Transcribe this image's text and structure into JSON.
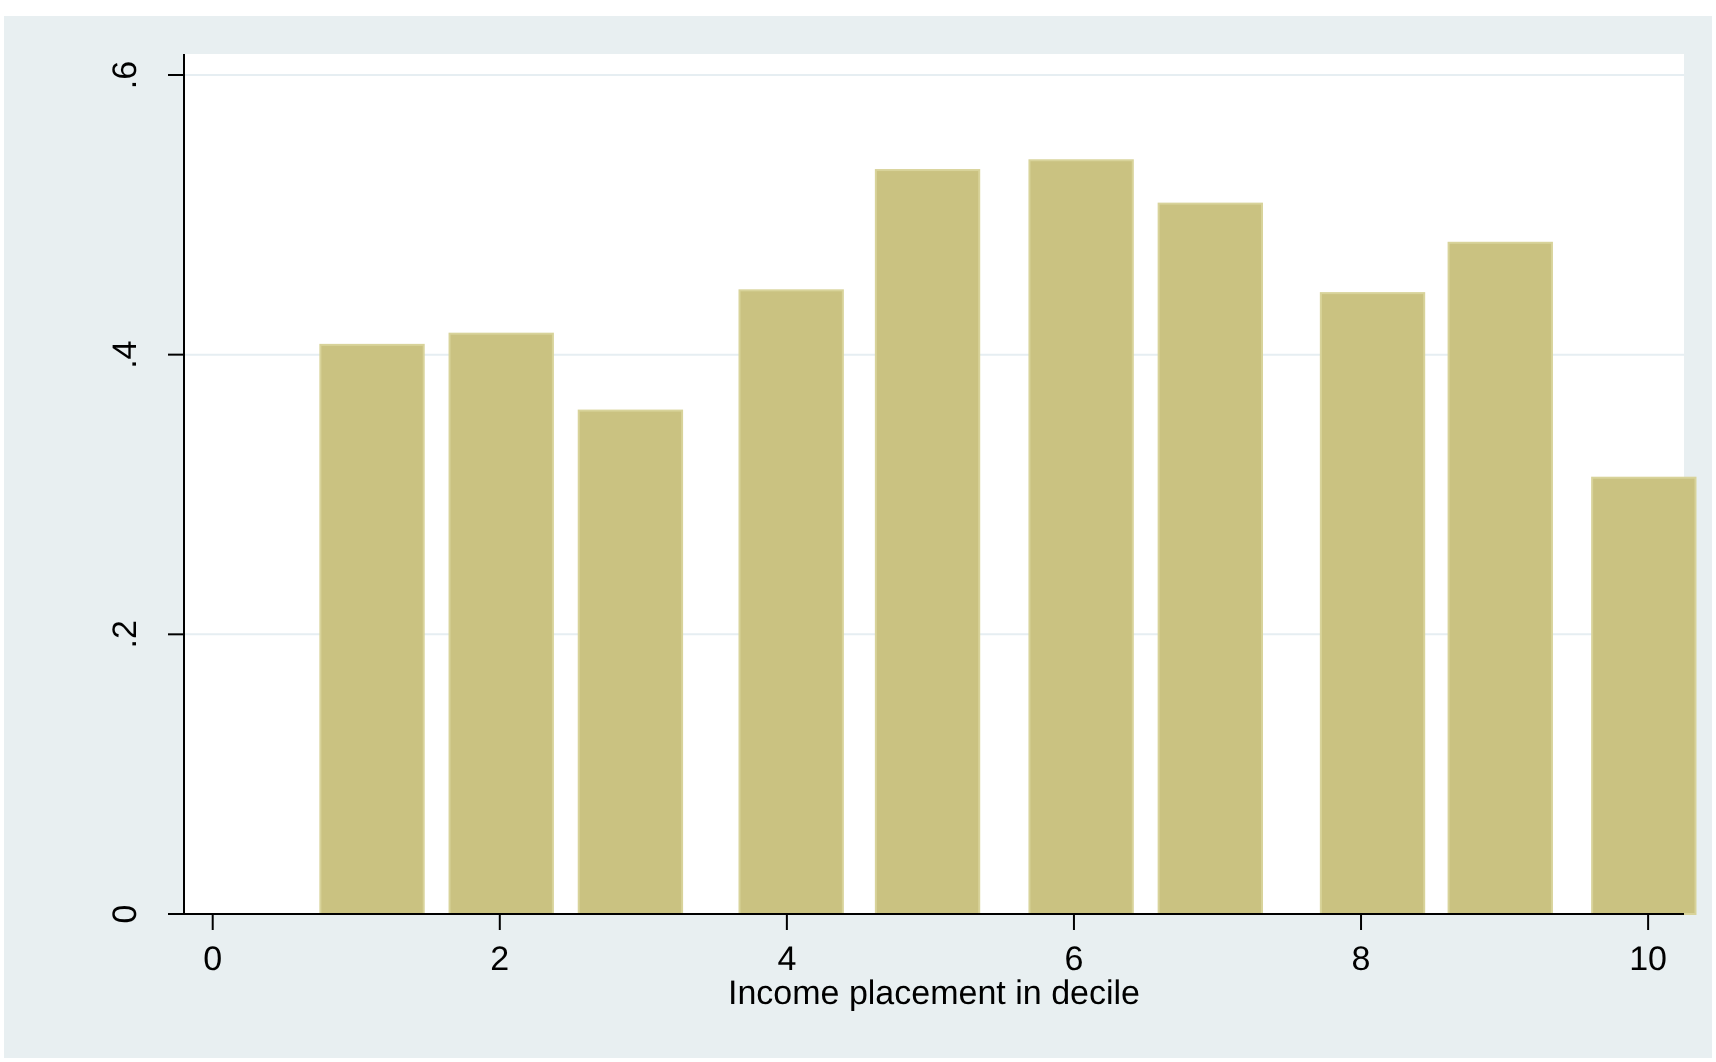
{
  "chart_data": {
    "type": "bar",
    "xlabel": "Income placement in decile",
    "x": [
      1.11,
      2.01,
      2.91,
      4.03,
      4.98,
      6.05,
      6.95,
      8.08,
      8.97,
      9.97
    ],
    "values": [
      0.407,
      0.415,
      0.36,
      0.446,
      0.532,
      0.539,
      0.508,
      0.444,
      0.48,
      0.312
    ],
    "color": "#cac281",
    "xlim": [
      -0.2,
      10.25
    ],
    "xticks": [
      0,
      2,
      4,
      6,
      8,
      10
    ],
    "ylim": [
      0,
      0.615
    ],
    "yticks": [
      {
        "value": 0,
        "label": "0"
      },
      {
        "value": 0.2,
        "label": ".2"
      },
      {
        "value": 0.4,
        "label": ".4"
      },
      {
        "value": 0.6,
        "label": ".6"
      }
    ],
    "grid": "y"
  }
}
